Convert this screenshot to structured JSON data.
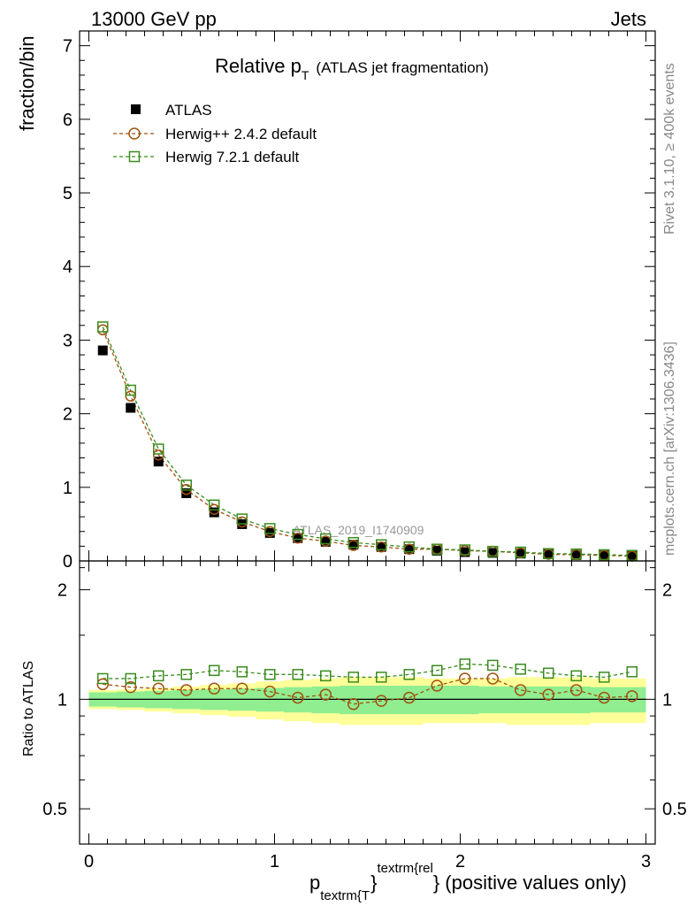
{
  "header": {
    "left": "13000 GeV pp",
    "right": "Jets"
  },
  "side_labels": {
    "top": "Rivet 3.1.10, ≥ 400k events",
    "bottom": "mcplots.cern.ch [arXiv:1306.3436]"
  },
  "colors": {
    "data": "#000000",
    "herwig_old": "#a0520f",
    "herwig_new": "#3a8c1e",
    "band_inner": "#90ee90",
    "band_outer": "#ffff99"
  },
  "chart_data": [
    {
      "type": "line",
      "title_main": "Relative p",
      "title_sub": "T",
      "title_paren": "(ATLAS jet fragmentation)",
      "ylabel": "fraction/bin",
      "watermark": "ATLAS_2019_I1740909",
      "xlim": [
        -0.05,
        3.05
      ],
      "ylim": [
        0,
        7.2
      ],
      "y_ticks": [
        0,
        1,
        2,
        3,
        4,
        5,
        6,
        7
      ],
      "x": [
        0.075,
        0.225,
        0.375,
        0.525,
        0.675,
        0.825,
        0.975,
        1.125,
        1.275,
        1.425,
        1.575,
        1.725,
        1.875,
        2.025,
        2.175,
        2.325,
        2.475,
        2.625,
        2.775,
        2.925
      ],
      "series": [
        {
          "name": "ATLAS",
          "marker": "filled-square",
          "values": [
            2.86,
            2.08,
            1.35,
            0.92,
            0.66,
            0.5,
            0.38,
            0.31,
            0.26,
            0.22,
            0.19,
            0.16,
            0.14,
            0.12,
            0.11,
            0.1,
            0.09,
            0.08,
            0.075,
            0.065
          ]
        },
        {
          "name": "Herwig++ 2.4.2 default",
          "marker": "open-circle",
          "values": [
            3.14,
            2.24,
            1.44,
            0.97,
            0.7,
            0.53,
            0.4,
            0.31,
            0.27,
            0.21,
            0.19,
            0.16,
            0.16,
            0.14,
            0.13,
            0.11,
            0.09,
            0.085,
            0.075,
            0.065
          ]
        },
        {
          "name": "Herwig 7.2.1 default",
          "marker": "open-square",
          "values": [
            3.18,
            2.32,
            1.52,
            1.03,
            0.76,
            0.57,
            0.44,
            0.36,
            0.3,
            0.25,
            0.22,
            0.19,
            0.16,
            0.15,
            0.13,
            0.12,
            0.1,
            0.095,
            0.085,
            0.075
          ]
        }
      ]
    },
    {
      "type": "line",
      "ylabel": "Ratio to ATLAS",
      "xlabel_main": "p",
      "xlabel_sub": "textrm{T",
      "xlabel_sup": "textrm{rel",
      "xlabel_brace": "}",
      "xlabel_tail": "} (positive values only)",
      "xlim": [
        -0.05,
        3.05
      ],
      "ylim": [
        0.4,
        2.4
      ],
      "y_scale": "log",
      "y_ticks": [
        0.5,
        1,
        2
      ],
      "y_tick_labels": [
        "0.5",
        "1",
        "2"
      ],
      "x_ticks": [
        0,
        1,
        2,
        3
      ],
      "x_tick_labels": [
        "0",
        "1",
        "2",
        "3"
      ],
      "bin_edges": [
        0.0,
        0.15,
        0.3,
        0.45,
        0.6,
        0.75,
        0.9,
        1.05,
        1.2,
        1.35,
        1.5,
        1.65,
        1.8,
        1.95,
        2.1,
        2.25,
        2.4,
        2.55,
        2.7,
        2.85,
        3.0
      ],
      "band_inner_half": [
        0.045,
        0.05,
        0.055,
        0.06,
        0.065,
        0.07,
        0.075,
        0.08,
        0.085,
        0.09,
        0.09,
        0.09,
        0.09,
        0.09,
        0.085,
        0.085,
        0.085,
        0.085,
        0.08,
        0.08
      ],
      "band_outer_half": [
        0.06,
        0.065,
        0.075,
        0.085,
        0.095,
        0.105,
        0.12,
        0.13,
        0.14,
        0.15,
        0.15,
        0.15,
        0.14,
        0.14,
        0.14,
        0.15,
        0.15,
        0.15,
        0.14,
        0.14
      ],
      "x": [
        0.075,
        0.225,
        0.375,
        0.525,
        0.675,
        0.825,
        0.975,
        1.125,
        1.275,
        1.425,
        1.575,
        1.725,
        1.875,
        2.025,
        2.175,
        2.325,
        2.475,
        2.625,
        2.775,
        2.925
      ],
      "series": [
        {
          "name": "Herwig++ 2.4.2 default",
          "marker": "open-circle",
          "values": [
            1.1,
            1.08,
            1.07,
            1.06,
            1.07,
            1.07,
            1.05,
            1.01,
            1.03,
            0.97,
            0.99,
            1.01,
            1.09,
            1.14,
            1.14,
            1.06,
            1.03,
            1.06,
            1.01,
            1.02
          ]
        },
        {
          "name": "Herwig 7.2.1 default",
          "marker": "open-square",
          "values": [
            1.14,
            1.14,
            1.16,
            1.17,
            1.2,
            1.19,
            1.17,
            1.17,
            1.16,
            1.15,
            1.15,
            1.17,
            1.2,
            1.25,
            1.24,
            1.21,
            1.18,
            1.16,
            1.15,
            1.19
          ]
        }
      ]
    }
  ]
}
